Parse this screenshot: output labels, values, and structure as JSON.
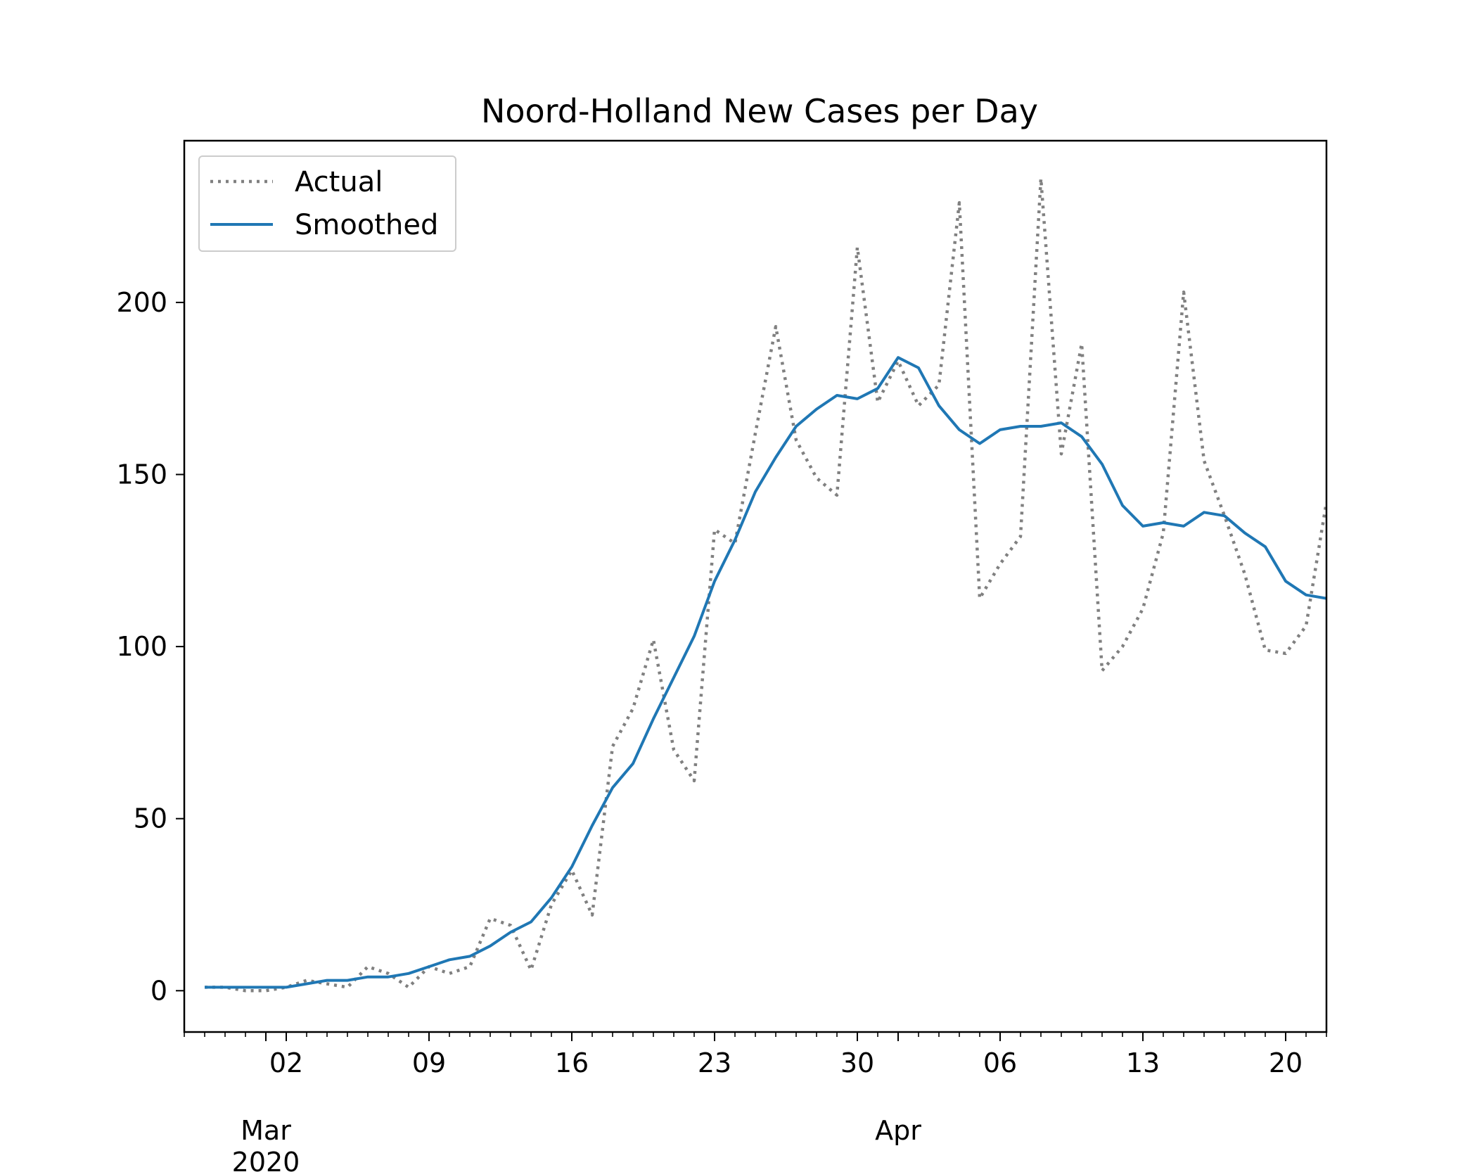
{
  "chart_data": {
    "type": "line",
    "title": "Noord-Holland New Cases per Day",
    "xlabel": "",
    "ylabel": "",
    "x": [
      "2020-02-27",
      "2020-02-28",
      "2020-02-29",
      "2020-03-01",
      "2020-03-02",
      "2020-03-03",
      "2020-03-04",
      "2020-03-05",
      "2020-03-06",
      "2020-03-07",
      "2020-03-08",
      "2020-03-09",
      "2020-03-10",
      "2020-03-11",
      "2020-03-12",
      "2020-03-13",
      "2020-03-14",
      "2020-03-15",
      "2020-03-16",
      "2020-03-17",
      "2020-03-18",
      "2020-03-19",
      "2020-03-20",
      "2020-03-21",
      "2020-03-22",
      "2020-03-23",
      "2020-03-24",
      "2020-03-25",
      "2020-03-26",
      "2020-03-27",
      "2020-03-28",
      "2020-03-29",
      "2020-03-30",
      "2020-03-31",
      "2020-04-01",
      "2020-04-02",
      "2020-04-03",
      "2020-04-04",
      "2020-04-05",
      "2020-04-06",
      "2020-04-07",
      "2020-04-08",
      "2020-04-09",
      "2020-04-10",
      "2020-04-11",
      "2020-04-12",
      "2020-04-13",
      "2020-04-14",
      "2020-04-15",
      "2020-04-16",
      "2020-04-17",
      "2020-04-18",
      "2020-04-19",
      "2020-04-20",
      "2020-04-21",
      "2020-04-22"
    ],
    "series": [
      {
        "name": "Actual",
        "style": "dotted",
        "color": "#808080",
        "values": [
          1,
          1,
          0,
          0,
          1,
          3,
          2,
          1,
          7,
          5,
          1,
          7,
          5,
          7,
          21,
          19,
          6,
          25,
          35,
          22,
          71,
          82,
          102,
          70,
          61,
          134,
          130,
          162,
          193,
          160,
          149,
          144,
          216,
          171,
          183,
          170,
          176,
          229,
          114,
          124,
          132,
          236,
          156,
          188,
          93,
          100,
          111,
          133,
          203,
          154,
          138,
          121,
          99,
          98,
          106,
          142
        ]
      },
      {
        "name": "Smoothed",
        "style": "solid",
        "color": "#1f77b4",
        "values": [
          1,
          1,
          1,
          1,
          1,
          2,
          3,
          3,
          4,
          4,
          5,
          7,
          9,
          10,
          13,
          17,
          20,
          27,
          36,
          48,
          59,
          66,
          79,
          91,
          103,
          119,
          131,
          145,
          155,
          164,
          169,
          173,
          172,
          175,
          184,
          181,
          170,
          163,
          159,
          163,
          164,
          164,
          165,
          161,
          153,
          141,
          135,
          136,
          135,
          139,
          138,
          133,
          129,
          119,
          115,
          114
        ]
      }
    ],
    "xlim": [
      "2020-02-26",
      "2020-04-22"
    ],
    "ylim": [
      -12,
      247
    ],
    "yticks": [
      0,
      50,
      100,
      150,
      200
    ],
    "xticks": [
      {
        "date": "2020-03-02",
        "label": "02"
      },
      {
        "date": "2020-03-09",
        "label": "09"
      },
      {
        "date": "2020-03-16",
        "label": "16"
      },
      {
        "date": "2020-03-23",
        "label": "23"
      },
      {
        "date": "2020-03-30",
        "label": "30"
      },
      {
        "date": "2020-04-06",
        "label": "06"
      },
      {
        "date": "2020-04-13",
        "label": "13"
      },
      {
        "date": "2020-04-20",
        "label": "20"
      }
    ],
    "month_labels": [
      {
        "date": "2020-03-01",
        "label": "Mar",
        "year": "2020"
      },
      {
        "date": "2020-04-01",
        "label": "Apr",
        "year": ""
      }
    ],
    "grid": false,
    "legend_position": "top-left"
  }
}
